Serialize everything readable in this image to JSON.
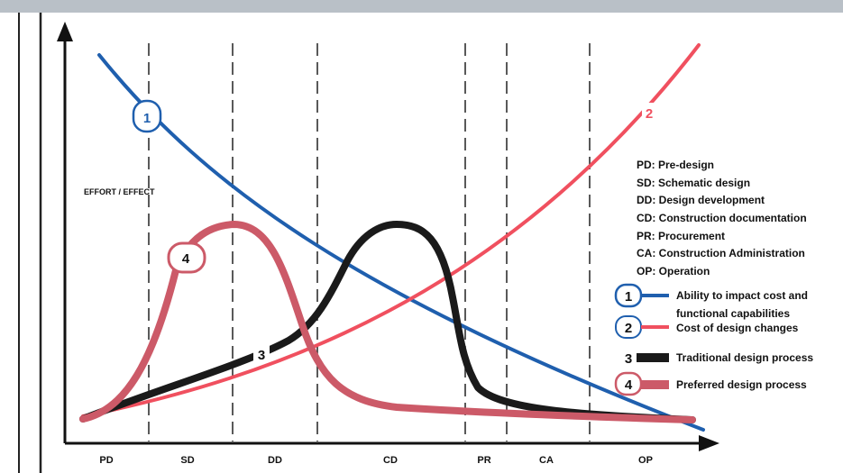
{
  "diagram": {
    "y_axis_label": "EFFORT / EFFECT",
    "phases": [
      {
        "code": "PD"
      },
      {
        "code": "SD"
      },
      {
        "code": "DD"
      },
      {
        "code": "CD"
      },
      {
        "code": "PR"
      },
      {
        "code": "CA"
      },
      {
        "code": "OP"
      }
    ],
    "definitions": [
      {
        "abbr": "PD",
        "text": "PD: Pre-design"
      },
      {
        "abbr": "SD",
        "text": "SD: Schematic design"
      },
      {
        "abbr": "DD",
        "text": "DD: Design development"
      },
      {
        "abbr": "CD",
        "text": "CD: Construction documentation"
      },
      {
        "abbr": "PR",
        "text": "PR: Procurement"
      },
      {
        "abbr": "CA",
        "text": "CA: Construction Administration"
      },
      {
        "abbr": "OP",
        "text": "OP: Operation"
      }
    ],
    "curves": [
      {
        "id": "1",
        "name_line1": "Ability to impact cost and",
        "name_line2": "functional capabilities",
        "color": "#1f5fae"
      },
      {
        "id": "2",
        "name_line1": "Cost of design changes",
        "name_line2": "",
        "color": "#f0505f"
      },
      {
        "id": "3",
        "name_line1": "Traditional design process",
        "name_line2": "",
        "color": "#1a1a1a"
      },
      {
        "id": "4",
        "name_line1": "Preferred design process",
        "name_line2": "",
        "color": "#cc5a68"
      }
    ],
    "curve_labels": [
      "1",
      "2",
      "3",
      "4"
    ]
  }
}
